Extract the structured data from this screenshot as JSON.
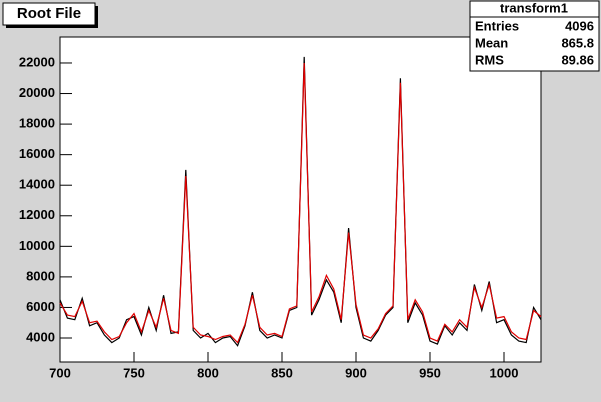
{
  "chart_data": {
    "type": "line",
    "title": "Root File",
    "stats": {
      "name": "transform1",
      "rows": [
        [
          "Entries",
          4096
        ],
        [
          "Mean",
          865.8
        ],
        [
          "RMS",
          89.86
        ]
      ]
    },
    "x": [
      700,
      705,
      710,
      715,
      720,
      725,
      730,
      735,
      740,
      745,
      750,
      755,
      760,
      765,
      770,
      775,
      780,
      785,
      790,
      795,
      800,
      805,
      810,
      815,
      820,
      825,
      830,
      835,
      840,
      845,
      850,
      855,
      860,
      865,
      870,
      875,
      880,
      885,
      890,
      895,
      900,
      905,
      910,
      915,
      920,
      925,
      930,
      935,
      940,
      945,
      950,
      955,
      960,
      965,
      970,
      975,
      980,
      985,
      990,
      995,
      1000,
      1005,
      1010,
      1015,
      1020,
      1025
    ],
    "series": [
      {
        "name": "black",
        "color": "#000000",
        "values": [
          6500,
          5300,
          5200,
          6600,
          4800,
          5000,
          4200,
          3700,
          4000,
          5200,
          5400,
          4200,
          6000,
          4500,
          6800,
          4300,
          4400,
          15000,
          4500,
          4000,
          4300,
          3700,
          4000,
          4100,
          3500,
          4800,
          7000,
          4500,
          4000,
          4200,
          4000,
          5800,
          6000,
          22400,
          5500,
          6500,
          7800,
          7000,
          5000,
          11200,
          6000,
          4000,
          3800,
          4500,
          5500,
          6000,
          21000,
          5000,
          6300,
          5500,
          3800,
          3600,
          4800,
          4200,
          5000,
          4500,
          7500,
          5800,
          7700,
          5000,
          5200,
          4200,
          3800,
          3700,
          6000,
          5200
        ]
      },
      {
        "name": "red",
        "color": "#e00000",
        "values": [
          6300,
          5500,
          5400,
          6400,
          5000,
          5100,
          4400,
          3900,
          4100,
          5000,
          5600,
          4400,
          5800,
          4700,
          6600,
          4500,
          4300,
          14600,
          4700,
          4200,
          4100,
          3900,
          4100,
          4200,
          3700,
          4900,
          6800,
          4700,
          4200,
          4300,
          4100,
          5900,
          6100,
          22000,
          5700,
          6700,
          8100,
          7200,
          5200,
          10900,
          6200,
          4200,
          4000,
          4600,
          5600,
          6100,
          20700,
          5200,
          6500,
          5700,
          4000,
          3800,
          4900,
          4400,
          5200,
          4700,
          7300,
          6000,
          7500,
          5300,
          5400,
          4400,
          4000,
          3900,
          5800,
          5400
        ]
      }
    ],
    "xlim": [
      700,
      1025
    ],
    "ylim": [
      2430,
      23700
    ],
    "xticks": [
      700,
      750,
      800,
      850,
      900,
      950,
      1000
    ],
    "yticks": [
      4000,
      6000,
      8000,
      10000,
      12000,
      14000,
      16000,
      18000,
      20000,
      22000
    ]
  }
}
